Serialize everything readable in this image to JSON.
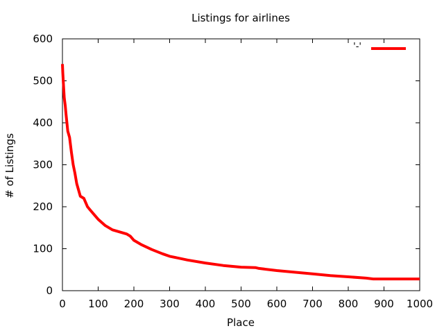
{
  "chart_data": {
    "type": "line",
    "title": "Listings for airlines",
    "xlabel": "Place",
    "ylabel": "# of Listings",
    "xlim": [
      0,
      1000
    ],
    "ylim": [
      0,
      600
    ],
    "xticks": [
      0,
      100,
      200,
      300,
      400,
      500,
      600,
      700,
      800,
      900,
      1000
    ],
    "yticks": [
      0,
      100,
      200,
      300,
      400,
      500,
      600
    ],
    "grid": false,
    "legend_position": "top-right",
    "series": [
      {
        "name": "'-'",
        "color": "#ff0000",
        "x": [
          0,
          1,
          3,
          5,
          8,
          10,
          15,
          20,
          25,
          30,
          35,
          40,
          45,
          50,
          60,
          70,
          80,
          90,
          100,
          120,
          140,
          160,
          180,
          190,
          200,
          220,
          250,
          280,
          300,
          350,
          400,
          450,
          500,
          540,
          550,
          600,
          650,
          700,
          750,
          800,
          850,
          870,
          900,
          950,
          1000
        ],
        "y": [
          540,
          520,
          490,
          460,
          440,
          420,
          380,
          365,
          330,
          300,
          280,
          255,
          240,
          225,
          220,
          200,
          190,
          180,
          170,
          155,
          145,
          140,
          135,
          130,
          120,
          110,
          98,
          88,
          82,
          73,
          66,
          60,
          56,
          55,
          53,
          48,
          44,
          40,
          36,
          33,
          30,
          28,
          28,
          28,
          28
        ]
      }
    ]
  }
}
